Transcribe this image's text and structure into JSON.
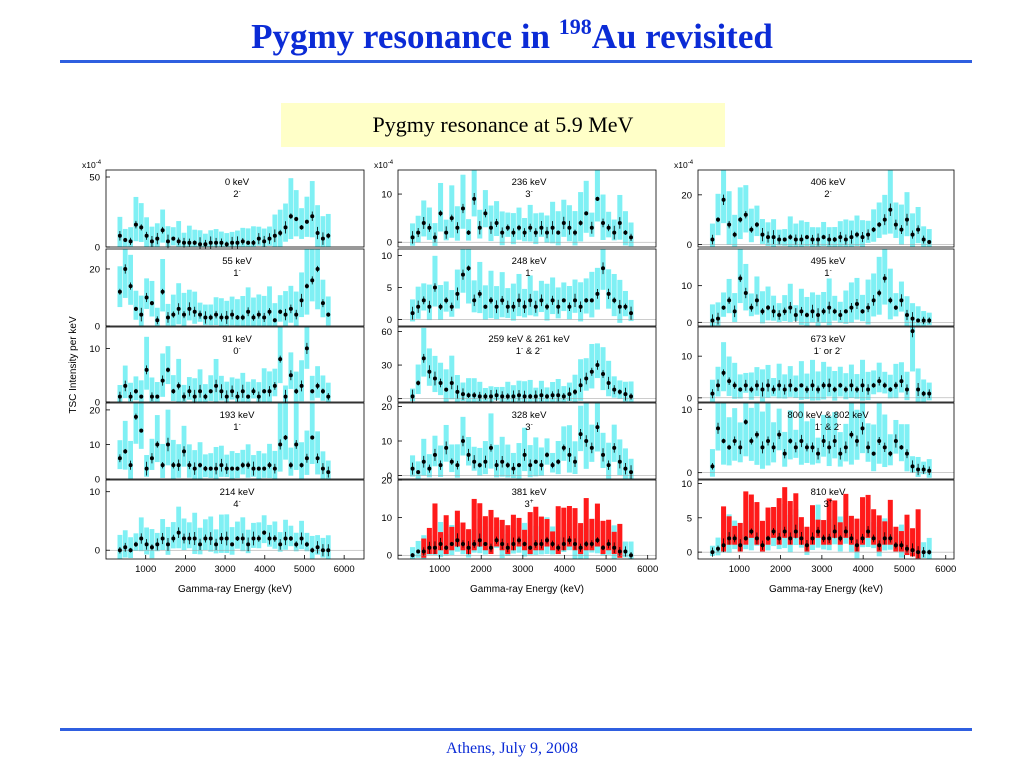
{
  "slide": {
    "title_main": "Pygmy resonance in ",
    "title_sup": "198",
    "title_tail": "Au revisited",
    "subtitle": "Pygmy resonance at 5.9 MeV",
    "footer": "Athens, July 9, 2008"
  },
  "colors": {
    "title": "#0b2bd6",
    "rule": "#2f5fe0",
    "subtitle_bg": "#ffffc8",
    "error_band": "#7ff0f4",
    "pygmy_band": "#ff1a1a",
    "data_points": "#000000"
  },
  "chart_data": {
    "type": "scatter",
    "ylabel": "TSC Intensity per keV",
    "xlabel": "Gamma-ray Energy (keV)",
    "x_ticks": [
      1000,
      2000,
      3000,
      4000,
      5000,
      6000
    ],
    "exponent_label": "x10",
    "exponent_sup": "-4",
    "columns": [
      {
        "xlim": [
          0,
          6500
        ],
        "panels": [
          {
            "label": "0 keV",
            "spin": "2",
            "parity": "-",
            "ylim": [
              0,
              55
            ],
            "yticks": [
              0,
              50
            ],
            "exponent": true,
            "red": false,
            "y": [
              8,
              5,
              4,
              16,
              14,
              8,
              4,
              6,
              12,
              4,
              6,
              4,
              3,
              3,
              3,
              2,
              2,
              3,
              3,
              3,
              2,
              3,
              3,
              4,
              3,
              3,
              6,
              4,
              6,
              8,
              10,
              14,
              22,
              20,
              14,
              18,
              22,
              10,
              6,
              8
            ]
          },
          {
            "label": "55 keV",
            "spin": "1",
            "parity": "-",
            "ylim": [
              0,
              27
            ],
            "yticks": [
              0,
              20
            ],
            "exponent": false,
            "red": false,
            "y": [
              12,
              20,
              14,
              6,
              4,
              10,
              8,
              2,
              12,
              3,
              4,
              6,
              4,
              6,
              5,
              4,
              3,
              3,
              4,
              3,
              3,
              4,
              3,
              3,
              5,
              3,
              4,
              3,
              5,
              2,
              5,
              4,
              6,
              4,
              9,
              14,
              16,
              20,
              8,
              4
            ]
          },
          {
            "label": "91 keV",
            "spin": "0",
            "parity": "-",
            "ylim": [
              0,
              14
            ],
            "yticks": [
              0,
              10
            ],
            "exponent": false,
            "red": false,
            "y": [
              1,
              3,
              1,
              2,
              1,
              6,
              1,
              1,
              4,
              6,
              2,
              3,
              1,
              2,
              1,
              2,
              1,
              2,
              3,
              2,
              1,
              2,
              1,
              2,
              1,
              2,
              1,
              2,
              2,
              3,
              8,
              1,
              5,
              2,
              3,
              10,
              2,
              3,
              2,
              1
            ]
          },
          {
            "label": "193 keV",
            "spin": "1",
            "parity": "-",
            "ylim": [
              0,
              22
            ],
            "yticks": [
              0,
              10,
              20
            ],
            "exponent": false,
            "red": false,
            "y": [
              6,
              8,
              4,
              18,
              14,
              3,
              6,
              10,
              4,
              10,
              4,
              4,
              8,
              4,
              3,
              4,
              3,
              3,
              3,
              4,
              3,
              3,
              3,
              4,
              4,
              3,
              3,
              3,
              4,
              3,
              10,
              12,
              4,
              10,
              4,
              6,
              12,
              6,
              3,
              2
            ]
          },
          {
            "label": "214 keV",
            "spin": "4",
            "parity": "-",
            "ylim": [
              -1.5,
              12
            ],
            "yticks": [
              0,
              10
            ],
            "exponent": false,
            "red": false,
            "y": [
              0,
              0.5,
              0,
              1,
              2,
              1,
              0.5,
              1,
              2,
              1,
              2,
              3,
              2,
              2,
              2,
              1,
              2,
              2,
              1,
              2,
              2,
              1,
              2,
              2,
              1,
              2,
              2,
              3,
              2,
              2,
              1,
              2,
              2,
              1,
              2,
              1,
              0,
              0.5,
              0,
              0
            ]
          }
        ]
      },
      {
        "xlim": [
          0,
          6200
        ],
        "panels": [
          {
            "label": "236 keV",
            "spin": "3",
            "parity": "-",
            "ylim": [
              -1,
              15
            ],
            "yticks": [
              0,
              10
            ],
            "exponent": true,
            "red": false,
            "y": [
              1,
              2,
              4,
              3,
              1,
              6,
              2,
              5,
              3,
              7,
              2,
              9,
              3,
              6,
              3,
              4,
              2,
              3,
              2,
              3,
              2,
              3,
              2,
              3,
              2,
              3,
              2,
              4,
              3,
              2,
              4,
              6,
              3,
              9,
              4,
              3,
              2,
              4,
              2,
              1
            ]
          },
          {
            "label": "248 keV",
            "spin": "1",
            "parity": "-",
            "ylim": [
              -1,
              11
            ],
            "yticks": [
              0,
              5,
              10
            ],
            "exponent": false,
            "red": false,
            "y": [
              1,
              2,
              3,
              2,
              5,
              2,
              3,
              2,
              4,
              7,
              8,
              3,
              4,
              2,
              3,
              2,
              3,
              2,
              2,
              3,
              2,
              3,
              2,
              3,
              2,
              3,
              2,
              3,
              2,
              3,
              2,
              3,
              3,
              4,
              8,
              4,
              3,
              2,
              2,
              1
            ]
          },
          {
            "label": "259 keV & 261 keV",
            "spin": "1",
            "parity": "-",
            "spin2": "2",
            "parity2": "-",
            "ylim": [
              -3,
              64
            ],
            "yticks": [
              0,
              30,
              60
            ],
            "exponent": false,
            "red": false,
            "y": [
              2,
              14,
              36,
              24,
              18,
              14,
              8,
              14,
              6,
              4,
              3,
              3,
              2,
              2,
              2,
              3,
              2,
              2,
              2,
              3,
              2,
              2,
              2,
              3,
              2,
              3,
              3,
              2,
              4,
              6,
              12,
              18,
              24,
              30,
              22,
              14,
              8,
              6,
              4,
              2
            ]
          },
          {
            "label": "328 keV",
            "spin": "3",
            "parity": "-",
            "ylim": [
              -1,
              21
            ],
            "yticks": [
              0,
              10,
              20
            ],
            "exponent": false,
            "red": false,
            "y": [
              2,
              1,
              4,
              2,
              6,
              3,
              8,
              4,
              3,
              10,
              6,
              4,
              3,
              4,
              8,
              3,
              4,
              3,
              2,
              3,
              6,
              3,
              4,
              3,
              6,
              3,
              4,
              8,
              6,
              4,
              12,
              10,
              8,
              14,
              6,
              3,
              8,
              4,
              2,
              1
            ]
          },
          {
            "label": "381 keV",
            "spin": "3",
            "parity": "+",
            "ylim": [
              -1,
              20
            ],
            "yticks": [
              0,
              10,
              20
            ],
            "exponent": false,
            "red": true,
            "y": [
              0,
              1,
              1,
              2,
              2,
              3,
              2,
              3,
              4,
              3,
              2,
              3,
              4,
              3,
              2,
              4,
              3,
              2,
              3,
              4,
              3,
              2,
              3,
              3,
              4,
              3,
              2,
              3,
              4,
              3,
              2,
              3,
              3,
              4,
              2,
              3,
              2,
              1,
              1,
              0
            ]
          }
        ]
      },
      {
        "xlim": [
          0,
          6200
        ],
        "panels": [
          {
            "label": "406 keV",
            "spin": "2",
            "parity": "-",
            "ylim": [
              -1,
              30
            ],
            "yticks": [
              0,
              20
            ],
            "exponent": true,
            "red": false,
            "y": [
              2,
              10,
              18,
              8,
              4,
              10,
              12,
              6,
              8,
              4,
              3,
              3,
              2,
              2,
              3,
              2,
              2,
              3,
              2,
              2,
              3,
              2,
              2,
              3,
              2,
              3,
              4,
              3,
              4,
              6,
              8,
              10,
              14,
              8,
              6,
              10,
              4,
              6,
              2,
              1
            ]
          },
          {
            "label": "495 keV",
            "spin": "1",
            "parity": "-",
            "ylim": [
              -1,
              20
            ],
            "yticks": [
              0,
              10
            ],
            "exponent": false,
            "red": false,
            "y": [
              0.5,
              1,
              4,
              6,
              3,
              12,
              8,
              4,
              6,
              3,
              4,
              3,
              2,
              3,
              4,
              2,
              3,
              2,
              3,
              2,
              3,
              4,
              3,
              2,
              3,
              4,
              5,
              3,
              4,
              6,
              8,
              12,
              6,
              4,
              6,
              2,
              1,
              0.5,
              0.5,
              0.5
            ]
          },
          {
            "label": "673 keV",
            "spin": "1",
            "parity": "-",
            "spin_suffix": " or 2",
            "parity2": "-",
            "ylim": [
              -1,
              17
            ],
            "yticks": [
              0,
              10
            ],
            "exponent": false,
            "red": false,
            "y": [
              1,
              3,
              6,
              4,
              3,
              2,
              3,
              2,
              3,
              2,
              3,
              2,
              3,
              2,
              3,
              2,
              3,
              2,
              3,
              2,
              3,
              3,
              2,
              3,
              2,
              3,
              2,
              3,
              2,
              3,
              4,
              3,
              2,
              3,
              4,
              2,
              16,
              2,
              1,
              1
            ]
          },
          {
            "label": "800 keV & 802 keV",
            "spin": "1",
            "parity": "-",
            "spin2": "2",
            "parity2": "-",
            "ylim": [
              -1,
              11
            ],
            "yticks": [
              0,
              10
            ],
            "exponent": false,
            "red": false,
            "y": [
              1,
              7,
              5,
              4,
              5,
              4,
              8,
              5,
              6,
              4,
              5,
              4,
              6,
              3,
              5,
              4,
              5,
              4,
              4,
              3,
              5,
              4,
              5,
              3,
              4,
              6,
              5,
              7,
              4,
              3,
              5,
              4,
              3,
              5,
              4,
              3,
              1,
              0.5,
              0.5,
              0.3
            ]
          },
          {
            "label": "810 keV",
            "spin": "3",
            "parity": "+",
            "ylim": [
              -1,
              10.5
            ],
            "yticks": [
              0,
              5,
              10
            ],
            "exponent": false,
            "red": true,
            "y": [
              0,
              0.5,
              1,
              2,
              2,
              1,
              2,
              3,
              2,
              1,
              2,
              3,
              2,
              3,
              2,
              3,
              2,
              1,
              2,
              3,
              2,
              2,
              3,
              2,
              3,
              2,
              1,
              2,
              3,
              2,
              1,
              2,
              2,
              1,
              1,
              0.5,
              0.3,
              0,
              0,
              0
            ]
          }
        ]
      }
    ]
  }
}
